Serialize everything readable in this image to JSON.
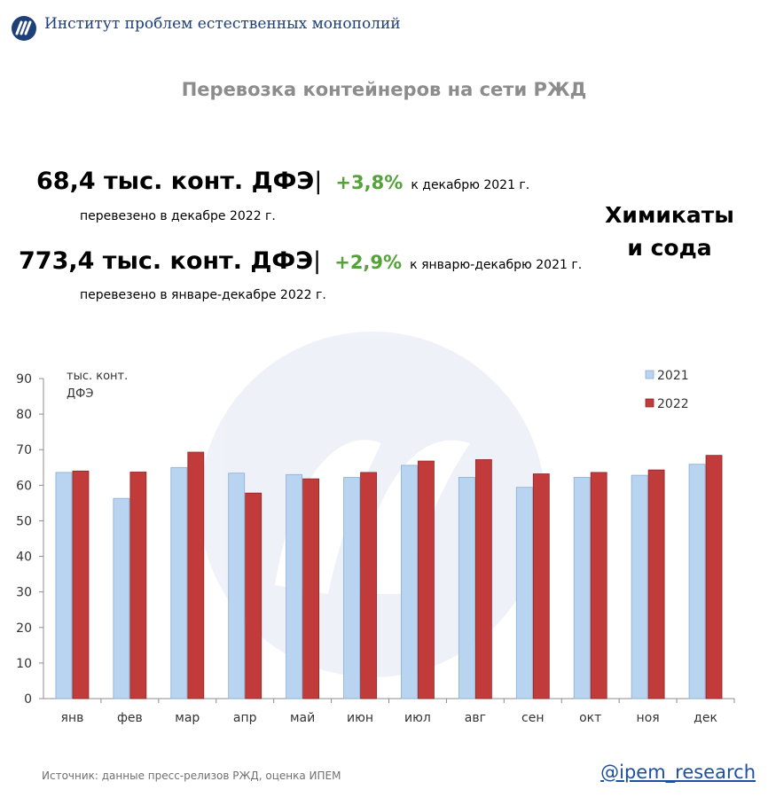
{
  "header": {
    "org_name": "Институт проблем естественных монополий",
    "title": "Перевозка контейнеров на сети РЖД"
  },
  "stats": [
    {
      "value": "68,4 тыс. конт. ДФЭ",
      "separator": "|",
      "change": "+3,8%",
      "comparison": "к декабрю 2021 г.",
      "note": "перевезено в декабре 2022 г."
    },
    {
      "value": "773,4 тыс. конт. ДФЭ",
      "separator": "|",
      "change": "+2,9%",
      "comparison": "к январю-декабрю 2021 г.",
      "note": "перевезено в январе-декабре 2022 г."
    }
  ],
  "category": {
    "line1": "Химикаты",
    "line2": "и сода"
  },
  "footer": {
    "source": "Источник: данные пресс-релизов РЖД, оценка ИПЕМ",
    "handle": "@ipem_research"
  },
  "colors": {
    "series_2021": "#b8d4f0",
    "series_2022": "#c23b3b",
    "accent_green": "#55a13a",
    "brand_blue": "#1d3f7a"
  },
  "chart_data": {
    "type": "bar",
    "title": "",
    "ylabel_line1": "тыс. конт.",
    "ylabel_line2": "ДФЭ",
    "ylim": [
      0,
      90
    ],
    "yticks": [
      0,
      10,
      20,
      30,
      40,
      50,
      60,
      70,
      80,
      90
    ],
    "grid": false,
    "legend_position": "top-right",
    "categories": [
      "янв",
      "фев",
      "мар",
      "апр",
      "май",
      "июн",
      "июл",
      "авг",
      "сен",
      "окт",
      "ноя",
      "дек"
    ],
    "series": [
      {
        "name": "2021",
        "color": "#b8d4f0",
        "values": [
          63.6,
          56.3,
          65.0,
          63.4,
          63.0,
          62.2,
          65.6,
          62.2,
          59.4,
          62.2,
          62.8,
          65.9
        ]
      },
      {
        "name": "2022",
        "color": "#c23b3b",
        "values": [
          64.0,
          63.7,
          69.3,
          57.8,
          61.8,
          63.6,
          66.8,
          67.2,
          63.2,
          63.6,
          64.3,
          68.4
        ]
      }
    ]
  }
}
